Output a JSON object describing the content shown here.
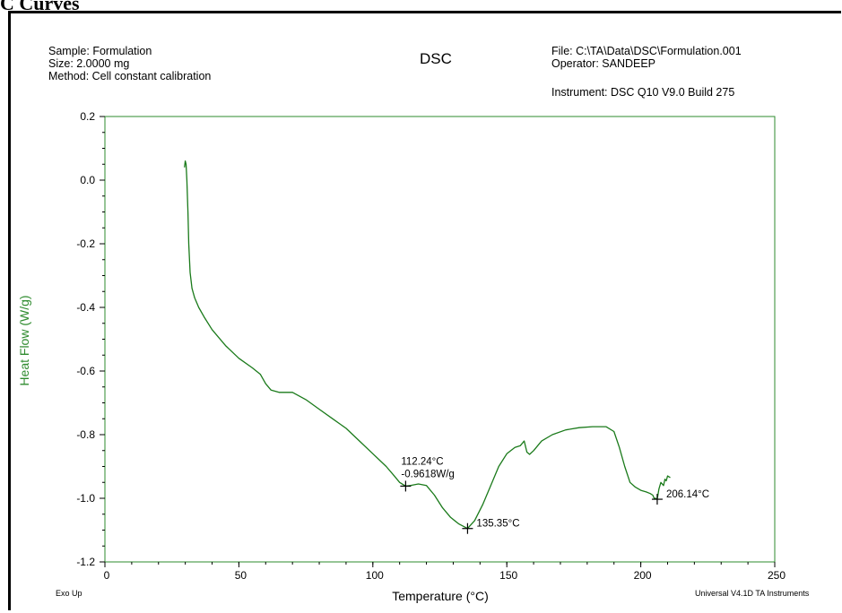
{
  "page_caption": "C Curves",
  "header": {
    "sample": "Sample: Formulation",
    "size": "Size:  2.0000 mg",
    "method": "Method: Cell constant calibration",
    "file": "File: C:\\TA\\Data\\DSC\\Formulation.001",
    "operator": "Operator: SANDEEP",
    "instrument": "Instrument: DSC Q10 V9.0 Build 275"
  },
  "footer": {
    "left": "Exo Up",
    "right": "Universal V4.1D TA Instruments"
  },
  "colors": {
    "curve": "#1a7a1a",
    "axis": "#2e8b2e",
    "ylabel": "#2e8b2e",
    "text": "#000000"
  },
  "chart_data": {
    "type": "line",
    "title": "DSC",
    "xlabel": "Temperature (°C)",
    "ylabel": "Heat Flow (W/g)",
    "xlim": [
      0,
      250
    ],
    "ylim": [
      -1.2,
      0.2
    ],
    "x_ticks": [
      0,
      50,
      100,
      150,
      200,
      250
    ],
    "y_ticks": [
      0.2,
      0.0,
      -0.2,
      -0.4,
      -0.6,
      -0.8,
      -1.0,
      -1.2
    ],
    "y_tick_labels": [
      "0.2",
      "0.0",
      "-0.2",
      "-0.4",
      "-0.6",
      "-0.8",
      "-1.0",
      "-1.2"
    ],
    "grid": false,
    "series": [
      {
        "x": [
          29.7,
          30.0,
          30.3,
          30.6,
          31.0,
          31.3,
          31.8,
          32.5,
          33.5,
          35.0,
          37.0,
          40.0,
          45.0,
          50.0,
          55.0,
          58.0,
          60.0,
          62.0,
          65.0,
          70.0,
          75.0,
          80.0,
          85.0,
          90.0,
          95.0,
          100.0,
          105.0,
          108.0,
          110.0,
          112.24,
          114.0,
          117.0,
          120.0,
          123.0,
          126.0,
          129.0,
          132.0,
          135.35,
          138.0,
          141.0,
          144.0,
          147.0,
          150.0,
          153.0,
          155.0,
          156.5,
          157.5,
          158.5,
          160.0,
          163.0,
          167.0,
          172.0,
          177.0,
          182.0,
          187.0,
          190.0,
          192.0,
          194.0,
          196.0,
          198.0,
          200.0,
          202.0,
          203.5,
          204.5,
          205.0,
          205.5,
          206.14,
          206.8,
          207.5,
          208.5,
          209.0,
          209.5,
          210.0,
          211.0
        ],
        "y": [
          0.04,
          0.06,
          0.05,
          0.0,
          -0.1,
          -0.2,
          -0.29,
          -0.34,
          -0.37,
          -0.4,
          -0.43,
          -0.47,
          -0.52,
          -0.56,
          -0.59,
          -0.61,
          -0.64,
          -0.66,
          -0.667,
          -0.667,
          -0.69,
          -0.72,
          -0.75,
          -0.78,
          -0.82,
          -0.86,
          -0.9,
          -0.93,
          -0.95,
          -0.9618,
          -0.96,
          -0.955,
          -0.96,
          -0.99,
          -1.03,
          -1.06,
          -1.08,
          -1.095,
          -1.07,
          -1.02,
          -0.96,
          -0.9,
          -0.86,
          -0.84,
          -0.835,
          -0.82,
          -0.855,
          -0.862,
          -0.85,
          -0.82,
          -0.8,
          -0.785,
          -0.778,
          -0.775,
          -0.775,
          -0.79,
          -0.84,
          -0.9,
          -0.95,
          -0.965,
          -0.975,
          -0.98,
          -0.985,
          -0.99,
          -1.0,
          -1.0,
          -1.003,
          -0.97,
          -0.95,
          -0.96,
          -0.94,
          -0.945,
          -0.93,
          -0.935
        ]
      }
    ],
    "annotations": [
      {
        "x": 112.24,
        "y": -0.9618,
        "label_line1": "112.24°C",
        "label_line2": "-0.9618W/g"
      },
      {
        "x": 135.35,
        "y": -1.095,
        "label_line1": "135.35°C"
      },
      {
        "x": 206.14,
        "y": -1.003,
        "label_line1": "206.14°C"
      }
    ]
  }
}
